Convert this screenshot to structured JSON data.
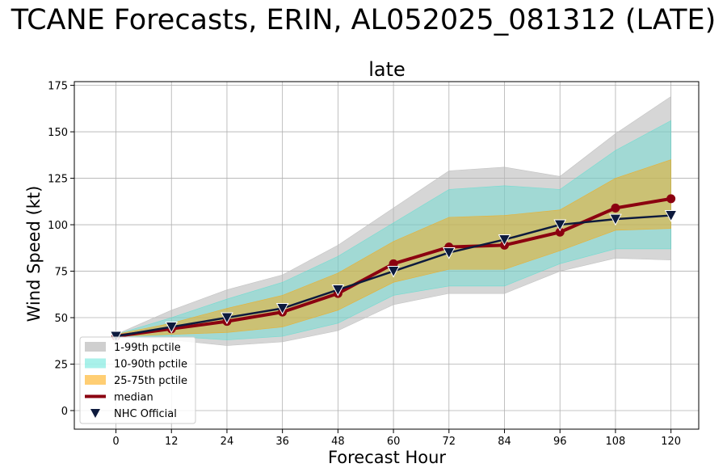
{
  "chart_data": {
    "type": "line",
    "suptitle": "TCANE Forecasts, ERIN, AL052025_081312 (LATE)",
    "title": "late",
    "xlabel": "Forecast Hour",
    "ylabel": "Wind Speed (kt)",
    "x": [
      0,
      12,
      24,
      36,
      48,
      60,
      72,
      84,
      96,
      108,
      120
    ],
    "xlim": [
      -9,
      126
    ],
    "ylim": [
      -10,
      177
    ],
    "xticks": [
      "0",
      "12",
      "24",
      "36",
      "48",
      "60",
      "72",
      "84",
      "96",
      "108",
      "120"
    ],
    "yticks": [
      "0",
      "25",
      "50",
      "75",
      "100",
      "125",
      "150",
      "175"
    ],
    "grid": true,
    "legend_position": "lower-left",
    "bands": [
      {
        "name": "1-99th pctile",
        "color": "#bbbbbb",
        "opacity": 0.6,
        "lower": [
          40,
          38,
          35,
          37,
          43,
          57,
          63,
          63,
          75,
          82,
          81
        ],
        "upper": [
          41,
          54,
          65,
          73,
          89,
          109,
          129,
          131,
          126,
          149,
          169
        ]
      },
      {
        "name": "10-90th pctile",
        "color": "#40e0d0",
        "opacity": 0.35,
        "lower": [
          40,
          40,
          38,
          40,
          47,
          62,
          67,
          67,
          79,
          87,
          87
        ],
        "upper": [
          41,
          50,
          60,
          69,
          83,
          101,
          119,
          121,
          119,
          140,
          156
        ]
      },
      {
        "name": "25-75th pctile",
        "color": "#ffa500",
        "opacity": 0.45,
        "lower": [
          40,
          41,
          42,
          45,
          54,
          69,
          76,
          76,
          86,
          97,
          98
        ],
        "upper": [
          41,
          47,
          55,
          62,
          74,
          91,
          104,
          105,
          108,
          125,
          135
        ]
      }
    ],
    "series": [
      {
        "name": "median",
        "color": "#8b0010",
        "marker": "circle",
        "values": [
          40,
          44,
          48,
          53,
          63,
          79,
          88,
          89,
          96,
          109,
          114
        ]
      },
      {
        "name": "NHC Official",
        "color": "#0d1a3d",
        "marker": "triangle-down",
        "values": [
          40,
          45,
          50,
          55,
          65,
          75,
          85,
          92,
          100,
          103,
          105
        ]
      }
    ],
    "legend": [
      "1-99th pctile",
      "10-90th pctile",
      "25-75th pctile",
      "median",
      "NHC Official"
    ]
  }
}
